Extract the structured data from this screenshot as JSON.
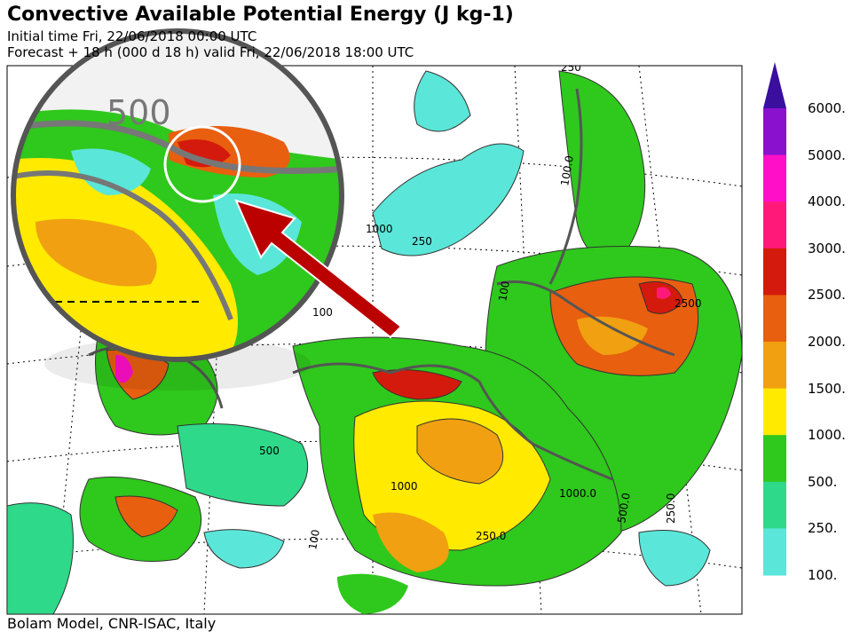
{
  "header": {
    "title": "Convective Available Potential Energy (J kg-1)",
    "initial": "Initial time  Fri, 22/06/2018  00:00 UTC",
    "forecast": "Forecast  +  18 h  (000 d 18 h)  valid Fri, 22/06/2018 18:00 UTC"
  },
  "footer": "Bolam Model, CNR-ISAC, Italy",
  "colorbar": {
    "labels": [
      "6000.",
      "5000.",
      "4000.",
      "3000.",
      "2500.",
      "2000.",
      "1500.",
      "1000.",
      "500.",
      "250.",
      "100."
    ],
    "colors": [
      "#8a12cf",
      "#ff10c8",
      "#ff1a7a",
      "#d41a0c",
      "#e85f10",
      "#f0a010",
      "#ffea00",
      "#2fc81c",
      "#2ed98a",
      "#5ae6d8"
    ],
    "top_color": "#3a0f9e"
  },
  "map_labels": [
    "250",
    "100.0",
    "1000",
    "250",
    "100",
    "100",
    "250",
    "500",
    "1000.0",
    "1000",
    "250.0",
    "100",
    "250.0",
    "500.0",
    "2500"
  ],
  "inset_label": "500"
}
